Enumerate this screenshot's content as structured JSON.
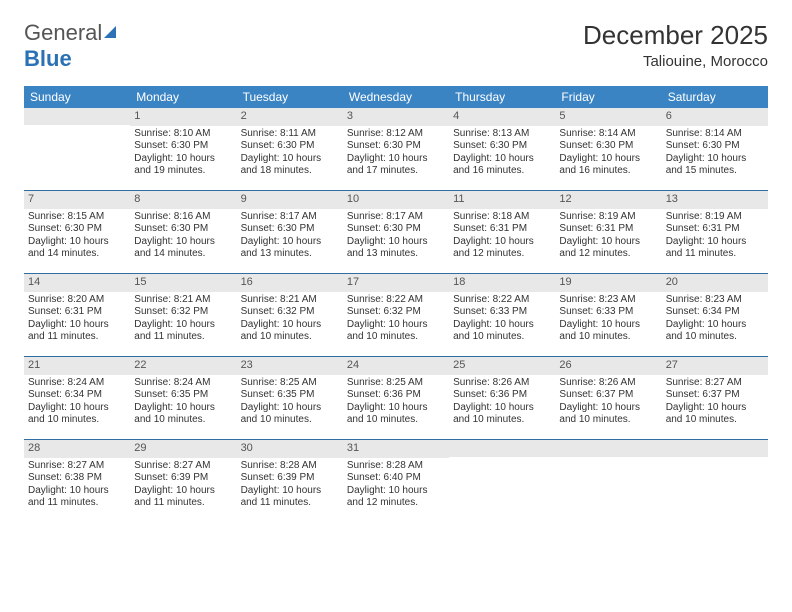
{
  "logo": {
    "word1": "General",
    "word2": "Blue"
  },
  "title": "December 2025",
  "subtitle": "Taliouine, Morocco",
  "header_bg": "#3b84c4",
  "daynum_bg": "#e8e8e8",
  "divider_color": "#2f6da3",
  "day_names": [
    "Sunday",
    "Monday",
    "Tuesday",
    "Wednesday",
    "Thursday",
    "Friday",
    "Saturday"
  ],
  "weeks": [
    [
      {
        "n": "",
        "lines": []
      },
      {
        "n": "1",
        "lines": [
          "Sunrise: 8:10 AM",
          "Sunset: 6:30 PM",
          "Daylight: 10 hours and 19 minutes."
        ]
      },
      {
        "n": "2",
        "lines": [
          "Sunrise: 8:11 AM",
          "Sunset: 6:30 PM",
          "Daylight: 10 hours and 18 minutes."
        ]
      },
      {
        "n": "3",
        "lines": [
          "Sunrise: 8:12 AM",
          "Sunset: 6:30 PM",
          "Daylight: 10 hours and 17 minutes."
        ]
      },
      {
        "n": "4",
        "lines": [
          "Sunrise: 8:13 AM",
          "Sunset: 6:30 PM",
          "Daylight: 10 hours and 16 minutes."
        ]
      },
      {
        "n": "5",
        "lines": [
          "Sunrise: 8:14 AM",
          "Sunset: 6:30 PM",
          "Daylight: 10 hours and 16 minutes."
        ]
      },
      {
        "n": "6",
        "lines": [
          "Sunrise: 8:14 AM",
          "Sunset: 6:30 PM",
          "Daylight: 10 hours and 15 minutes."
        ]
      }
    ],
    [
      {
        "n": "7",
        "lines": [
          "Sunrise: 8:15 AM",
          "Sunset: 6:30 PM",
          "Daylight: 10 hours and 14 minutes."
        ]
      },
      {
        "n": "8",
        "lines": [
          "Sunrise: 8:16 AM",
          "Sunset: 6:30 PM",
          "Daylight: 10 hours and 14 minutes."
        ]
      },
      {
        "n": "9",
        "lines": [
          "Sunrise: 8:17 AM",
          "Sunset: 6:30 PM",
          "Daylight: 10 hours and 13 minutes."
        ]
      },
      {
        "n": "10",
        "lines": [
          "Sunrise: 8:17 AM",
          "Sunset: 6:30 PM",
          "Daylight: 10 hours and 13 minutes."
        ]
      },
      {
        "n": "11",
        "lines": [
          "Sunrise: 8:18 AM",
          "Sunset: 6:31 PM",
          "Daylight: 10 hours and 12 minutes."
        ]
      },
      {
        "n": "12",
        "lines": [
          "Sunrise: 8:19 AM",
          "Sunset: 6:31 PM",
          "Daylight: 10 hours and 12 minutes."
        ]
      },
      {
        "n": "13",
        "lines": [
          "Sunrise: 8:19 AM",
          "Sunset: 6:31 PM",
          "Daylight: 10 hours and 11 minutes."
        ]
      }
    ],
    [
      {
        "n": "14",
        "lines": [
          "Sunrise: 8:20 AM",
          "Sunset: 6:31 PM",
          "Daylight: 10 hours and 11 minutes."
        ]
      },
      {
        "n": "15",
        "lines": [
          "Sunrise: 8:21 AM",
          "Sunset: 6:32 PM",
          "Daylight: 10 hours and 11 minutes."
        ]
      },
      {
        "n": "16",
        "lines": [
          "Sunrise: 8:21 AM",
          "Sunset: 6:32 PM",
          "Daylight: 10 hours and 10 minutes."
        ]
      },
      {
        "n": "17",
        "lines": [
          "Sunrise: 8:22 AM",
          "Sunset: 6:32 PM",
          "Daylight: 10 hours and 10 minutes."
        ]
      },
      {
        "n": "18",
        "lines": [
          "Sunrise: 8:22 AM",
          "Sunset: 6:33 PM",
          "Daylight: 10 hours and 10 minutes."
        ]
      },
      {
        "n": "19",
        "lines": [
          "Sunrise: 8:23 AM",
          "Sunset: 6:33 PM",
          "Daylight: 10 hours and 10 minutes."
        ]
      },
      {
        "n": "20",
        "lines": [
          "Sunrise: 8:23 AM",
          "Sunset: 6:34 PM",
          "Daylight: 10 hours and 10 minutes."
        ]
      }
    ],
    [
      {
        "n": "21",
        "lines": [
          "Sunrise: 8:24 AM",
          "Sunset: 6:34 PM",
          "Daylight: 10 hours and 10 minutes."
        ]
      },
      {
        "n": "22",
        "lines": [
          "Sunrise: 8:24 AM",
          "Sunset: 6:35 PM",
          "Daylight: 10 hours and 10 minutes."
        ]
      },
      {
        "n": "23",
        "lines": [
          "Sunrise: 8:25 AM",
          "Sunset: 6:35 PM",
          "Daylight: 10 hours and 10 minutes."
        ]
      },
      {
        "n": "24",
        "lines": [
          "Sunrise: 8:25 AM",
          "Sunset: 6:36 PM",
          "Daylight: 10 hours and 10 minutes."
        ]
      },
      {
        "n": "25",
        "lines": [
          "Sunrise: 8:26 AM",
          "Sunset: 6:36 PM",
          "Daylight: 10 hours and 10 minutes."
        ]
      },
      {
        "n": "26",
        "lines": [
          "Sunrise: 8:26 AM",
          "Sunset: 6:37 PM",
          "Daylight: 10 hours and 10 minutes."
        ]
      },
      {
        "n": "27",
        "lines": [
          "Sunrise: 8:27 AM",
          "Sunset: 6:37 PM",
          "Daylight: 10 hours and 10 minutes."
        ]
      }
    ],
    [
      {
        "n": "28",
        "lines": [
          "Sunrise: 8:27 AM",
          "Sunset: 6:38 PM",
          "Daylight: 10 hours and 11 minutes."
        ]
      },
      {
        "n": "29",
        "lines": [
          "Sunrise: 8:27 AM",
          "Sunset: 6:39 PM",
          "Daylight: 10 hours and 11 minutes."
        ]
      },
      {
        "n": "30",
        "lines": [
          "Sunrise: 8:28 AM",
          "Sunset: 6:39 PM",
          "Daylight: 10 hours and 11 minutes."
        ]
      },
      {
        "n": "31",
        "lines": [
          "Sunrise: 8:28 AM",
          "Sunset: 6:40 PM",
          "Daylight: 10 hours and 12 minutes."
        ]
      },
      {
        "n": "",
        "lines": []
      },
      {
        "n": "",
        "lines": []
      },
      {
        "n": "",
        "lines": []
      }
    ]
  ]
}
